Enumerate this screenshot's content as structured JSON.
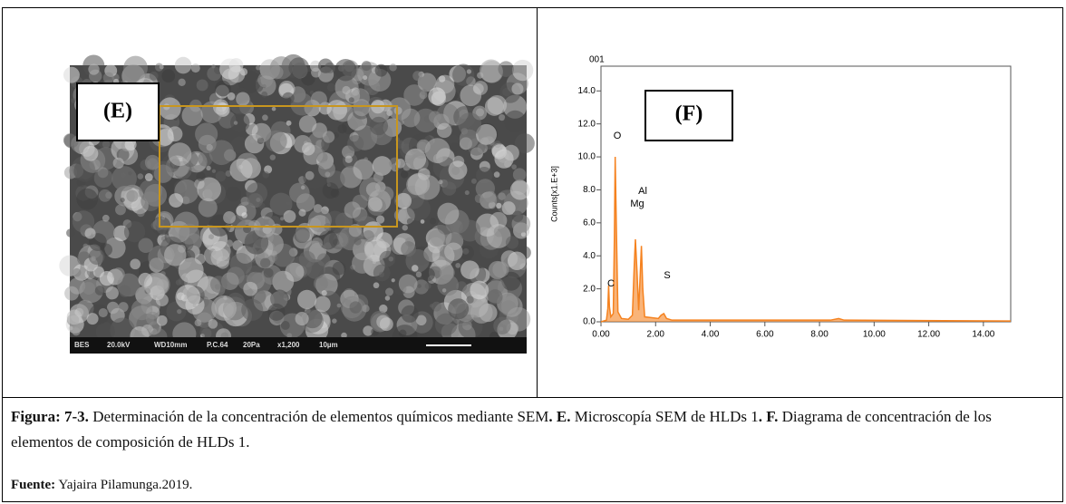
{
  "panel_e": {
    "label": "(E)",
    "info_bar": [
      "BES",
      "20.0kV",
      "WD10mm",
      "P.C.64",
      "20Pa",
      "x1,200",
      "10µm"
    ]
  },
  "panel_f": {
    "label": "(F)",
    "peak_labels": [
      "O",
      "Al",
      "Mg",
      "C",
      "S"
    ]
  },
  "chart_data": {
    "type": "line",
    "title": "001",
    "y_label": "Counts[x1.E+3]",
    "x": [
      0,
      0.2,
      0.25,
      0.28,
      0.31,
      0.36,
      0.45,
      0.49,
      0.52,
      0.56,
      0.62,
      0.75,
      1.0,
      1.15,
      1.22,
      1.26,
      1.32,
      1.38,
      1.44,
      1.48,
      1.53,
      1.6,
      2.1,
      2.2,
      2.3,
      2.4,
      2.6,
      4.0,
      8.4,
      8.7,
      8.9,
      15
    ],
    "values": [
      0,
      0.1,
      0.8,
      2.2,
      0.9,
      0.3,
      0.5,
      5.0,
      10.0,
      6.0,
      0.6,
      0.2,
      0.15,
      0.4,
      3.5,
      5.0,
      3.0,
      0.7,
      3.0,
      4.6,
      2.0,
      0.3,
      0.2,
      0.4,
      0.5,
      0.2,
      0.1,
      0.1,
      0.1,
      0.2,
      0.1,
      0.05
    ],
    "color": "#f5821f",
    "xlim": [
      0,
      15
    ],
    "ylim": [
      0,
      15.5
    ],
    "xticks": [
      {
        "value": 0,
        "label": "0.00"
      },
      {
        "value": 2,
        "label": "2.00"
      },
      {
        "value": 4,
        "label": "4.00"
      },
      {
        "value": 6,
        "label": "6.00"
      },
      {
        "value": 8,
        "label": "8.00"
      },
      {
        "value": 10,
        "label": "10.00"
      },
      {
        "value": 12,
        "label": "12.00"
      },
      {
        "value": 14,
        "label": "14.00"
      }
    ],
    "yticks": [
      {
        "value": 0,
        "label": "0.0"
      },
      {
        "value": 2,
        "label": "2.0"
      },
      {
        "value": 4,
        "label": "4.0"
      },
      {
        "value": 6,
        "label": "6.0"
      },
      {
        "value": 8,
        "label": "8.0"
      },
      {
        "value": 10,
        "label": "10.0"
      },
      {
        "value": 12,
        "label": "12.0"
      },
      {
        "value": 14,
        "label": "14.0"
      }
    ]
  },
  "caption": {
    "label": "Figura:  7-3.",
    "text1": "Determinación de la concentración de elementos químicos mediante SEM",
    "bold_e": ". E.",
    "text2": "Microscopía SEM de HLDs 1",
    "bold_f": ". F.",
    "text3": "Diagrama de concentración de los elementos de composición de HLDs 1."
  },
  "source": {
    "label": "Fuente:",
    "text": "Yajaira Pilamunga.2019."
  }
}
